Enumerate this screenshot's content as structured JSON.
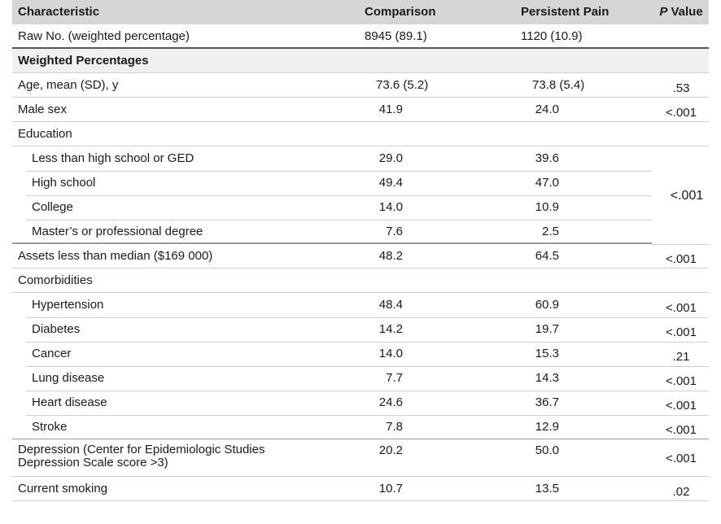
{
  "header": {
    "characteristic": "Characteristic",
    "comparison": "Comparison",
    "persistent_pain": "Persistent Pain",
    "p_value_italic": "P",
    "p_value_rest": " Value"
  },
  "raw": {
    "label": "Raw No. (weighted percentage)",
    "comparison": "8945 (89.1)",
    "persistent_pain": "1120 (10.9)"
  },
  "section_weighted": "Weighted Percentages",
  "age": {
    "label": "Age, mean (SD), y",
    "comparison": "73.6 (5.2)",
    "persistent_pain": "73.8 (5.4)",
    "p": ".53"
  },
  "male": {
    "label": "Male sex",
    "comparison": "41.9",
    "persistent_pain": "24.0",
    "p": "<.001"
  },
  "education": {
    "label": "Education",
    "p": "<.001",
    "items": [
      {
        "label": "Less than high school or GED",
        "comparison": "29.0",
        "persistent_pain": "39.6"
      },
      {
        "label": "High school",
        "comparison": "49.4",
        "persistent_pain": "47.0"
      },
      {
        "label": "College",
        "comparison": "14.0",
        "persistent_pain": "10.9"
      },
      {
        "label": "Master’s or professional degree",
        "comparison": "7.6",
        "persistent_pain": "2.5"
      }
    ]
  },
  "assets": {
    "label": "Assets less than median ($169 000)",
    "comparison": "48.2",
    "persistent_pain": "64.5",
    "p": "<.001"
  },
  "comorbidities": {
    "label": "Comorbidities",
    "items": [
      {
        "label": "Hypertension",
        "comparison": "48.4",
        "persistent_pain": "60.9",
        "p": "<.001"
      },
      {
        "label": "Diabetes",
        "comparison": "14.2",
        "persistent_pain": "19.7",
        "p": "<.001"
      },
      {
        "label": "Cancer",
        "comparison": "14.0",
        "persistent_pain": "15.3",
        "p": ".21"
      },
      {
        "label": "Lung disease",
        "comparison": "7.7",
        "persistent_pain": "14.3",
        "p": "<.001"
      },
      {
        "label": "Heart disease",
        "comparison": "24.6",
        "persistent_pain": "36.7",
        "p": "<.001"
      },
      {
        "label": "Stroke",
        "comparison": "7.8",
        "persistent_pain": "12.9",
        "p": "<.001"
      }
    ]
  },
  "depression": {
    "label": "Depression (Center for Epidemiologic Studies Depression Scale score >3)",
    "comparison": "20.2",
    "persistent_pain": "50.0",
    "p": "<.001"
  },
  "smoking": {
    "label": "Current smoking",
    "comparison": "10.7",
    "persistent_pain": "13.5",
    "p": ".02"
  }
}
